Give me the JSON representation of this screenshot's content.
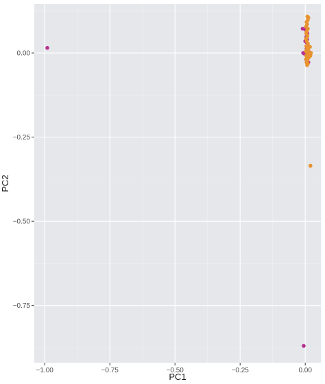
{
  "chart_data": {
    "type": "scatter",
    "title": "",
    "xlabel": "PC1",
    "ylabel": "PC2",
    "xlim": [
      -1.04,
      0.06
    ],
    "ylim": [
      -0.92,
      0.145
    ],
    "x_ticks": [
      -1.0,
      -0.75,
      -0.5,
      -0.25,
      0.0
    ],
    "x_tick_labels": [
      "-1.00",
      "-0.75",
      "-0.50",
      "-0.25",
      "0.00"
    ],
    "y_ticks": [
      0.0,
      -0.25,
      -0.5,
      -0.75
    ],
    "y_tick_labels": [
      "0.00",
      "-0.25",
      "-0.50",
      "-0.75"
    ],
    "grid": true,
    "colors": {
      "panel": "#e5e7eb",
      "grid_major": "#ffffff",
      "grid_minor": "#eef0f3"
    },
    "series": [
      {
        "color": "#b5318f",
        "points": [
          [
            -0.99,
            0.015
          ],
          [
            -0.01,
            0.072
          ],
          [
            0.0,
            0.07
          ],
          [
            0.005,
            0.065
          ],
          [
            0.008,
            0.058
          ],
          [
            0.004,
            0.048
          ],
          [
            0.007,
            0.04
          ],
          [
            0.006,
            0.03
          ],
          [
            0.01,
            0.022
          ],
          [
            -0.008,
            0.0
          ],
          [
            -0.004,
            -0.002
          ],
          [
            0.008,
            0.005
          ],
          [
            0.012,
            0.0
          ],
          [
            0.006,
            -0.01
          ],
          [
            0.015,
            0.002
          ],
          [
            0.004,
            -0.02
          ],
          [
            0.008,
            -0.03
          ],
          [
            0.012,
            -0.028
          ],
          [
            0.005,
            0.012
          ],
          [
            0.0,
            0.035
          ],
          [
            -0.006,
            -0.87
          ]
        ]
      },
      {
        "color": "#e89330",
        "points": [
          [
            0.008,
            0.108
          ],
          [
            0.012,
            0.105
          ],
          [
            0.01,
            0.098
          ],
          [
            0.005,
            0.092
          ],
          [
            0.007,
            0.085
          ],
          [
            0.003,
            0.078
          ],
          [
            0.01,
            0.072
          ],
          [
            0.006,
            0.065
          ],
          [
            0.004,
            0.058
          ],
          [
            0.008,
            0.05
          ],
          [
            0.003,
            0.042
          ],
          [
            0.006,
            0.035
          ],
          [
            0.01,
            0.028
          ],
          [
            0.004,
            0.02
          ],
          [
            0.008,
            0.015
          ],
          [
            0.006,
            0.01
          ],
          [
            0.012,
            0.008
          ],
          [
            0.003,
            0.005
          ],
          [
            0.008,
            0.0
          ],
          [
            0.01,
            -0.005
          ],
          [
            0.004,
            -0.008
          ],
          [
            0.006,
            -0.012
          ],
          [
            0.012,
            -0.015
          ],
          [
            0.003,
            -0.018
          ],
          [
            0.008,
            -0.022
          ],
          [
            0.005,
            -0.028
          ],
          [
            0.01,
            -0.032
          ],
          [
            0.007,
            -0.036
          ],
          [
            0.02,
            -0.008
          ],
          [
            0.018,
            0.018
          ],
          [
            0.022,
            0.0
          ],
          [
            0.015,
            -0.012
          ],
          [
            0.02,
            -0.335
          ]
        ]
      }
    ]
  }
}
